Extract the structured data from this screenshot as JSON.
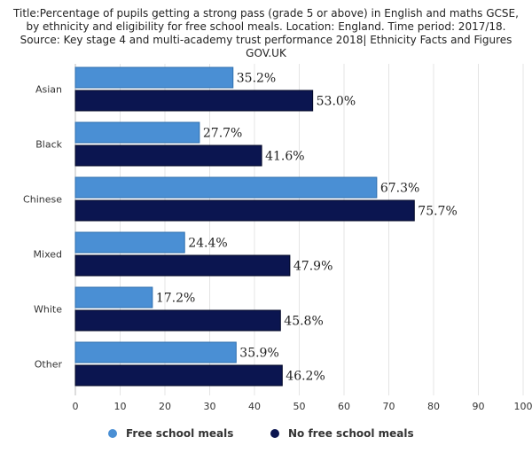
{
  "chart_data": {
    "type": "bar",
    "orientation": "horizontal",
    "title": "Title:Percentage of pupils getting a strong pass (grade 5 or above) in English and maths GCSE, by ethnicity and eligibility for free school meals. Location: England. Time period: 2017/18. Source: Key stage 4 and multi-academy trust performance 2018| Ethnicity Facts and Figures GOV.UK",
    "categories": [
      "Asian",
      "Black",
      "Chinese",
      "Mixed",
      "White",
      "Other"
    ],
    "series": [
      {
        "name": "Free school meals",
        "color": "#4a8fd4",
        "values": [
          35.2,
          27.7,
          67.3,
          24.4,
          17.2,
          35.9
        ]
      },
      {
        "name": "No free school meals",
        "color": "#0b1550",
        "values": [
          53.0,
          41.6,
          75.7,
          47.9,
          45.8,
          46.2
        ]
      }
    ],
    "value_suffix": "%",
    "xlim": [
      0,
      100
    ],
    "xticks": [
      0,
      10,
      20,
      30,
      40,
      50,
      60,
      70,
      80,
      90,
      100
    ],
    "grid": true,
    "legend": "bottom"
  }
}
